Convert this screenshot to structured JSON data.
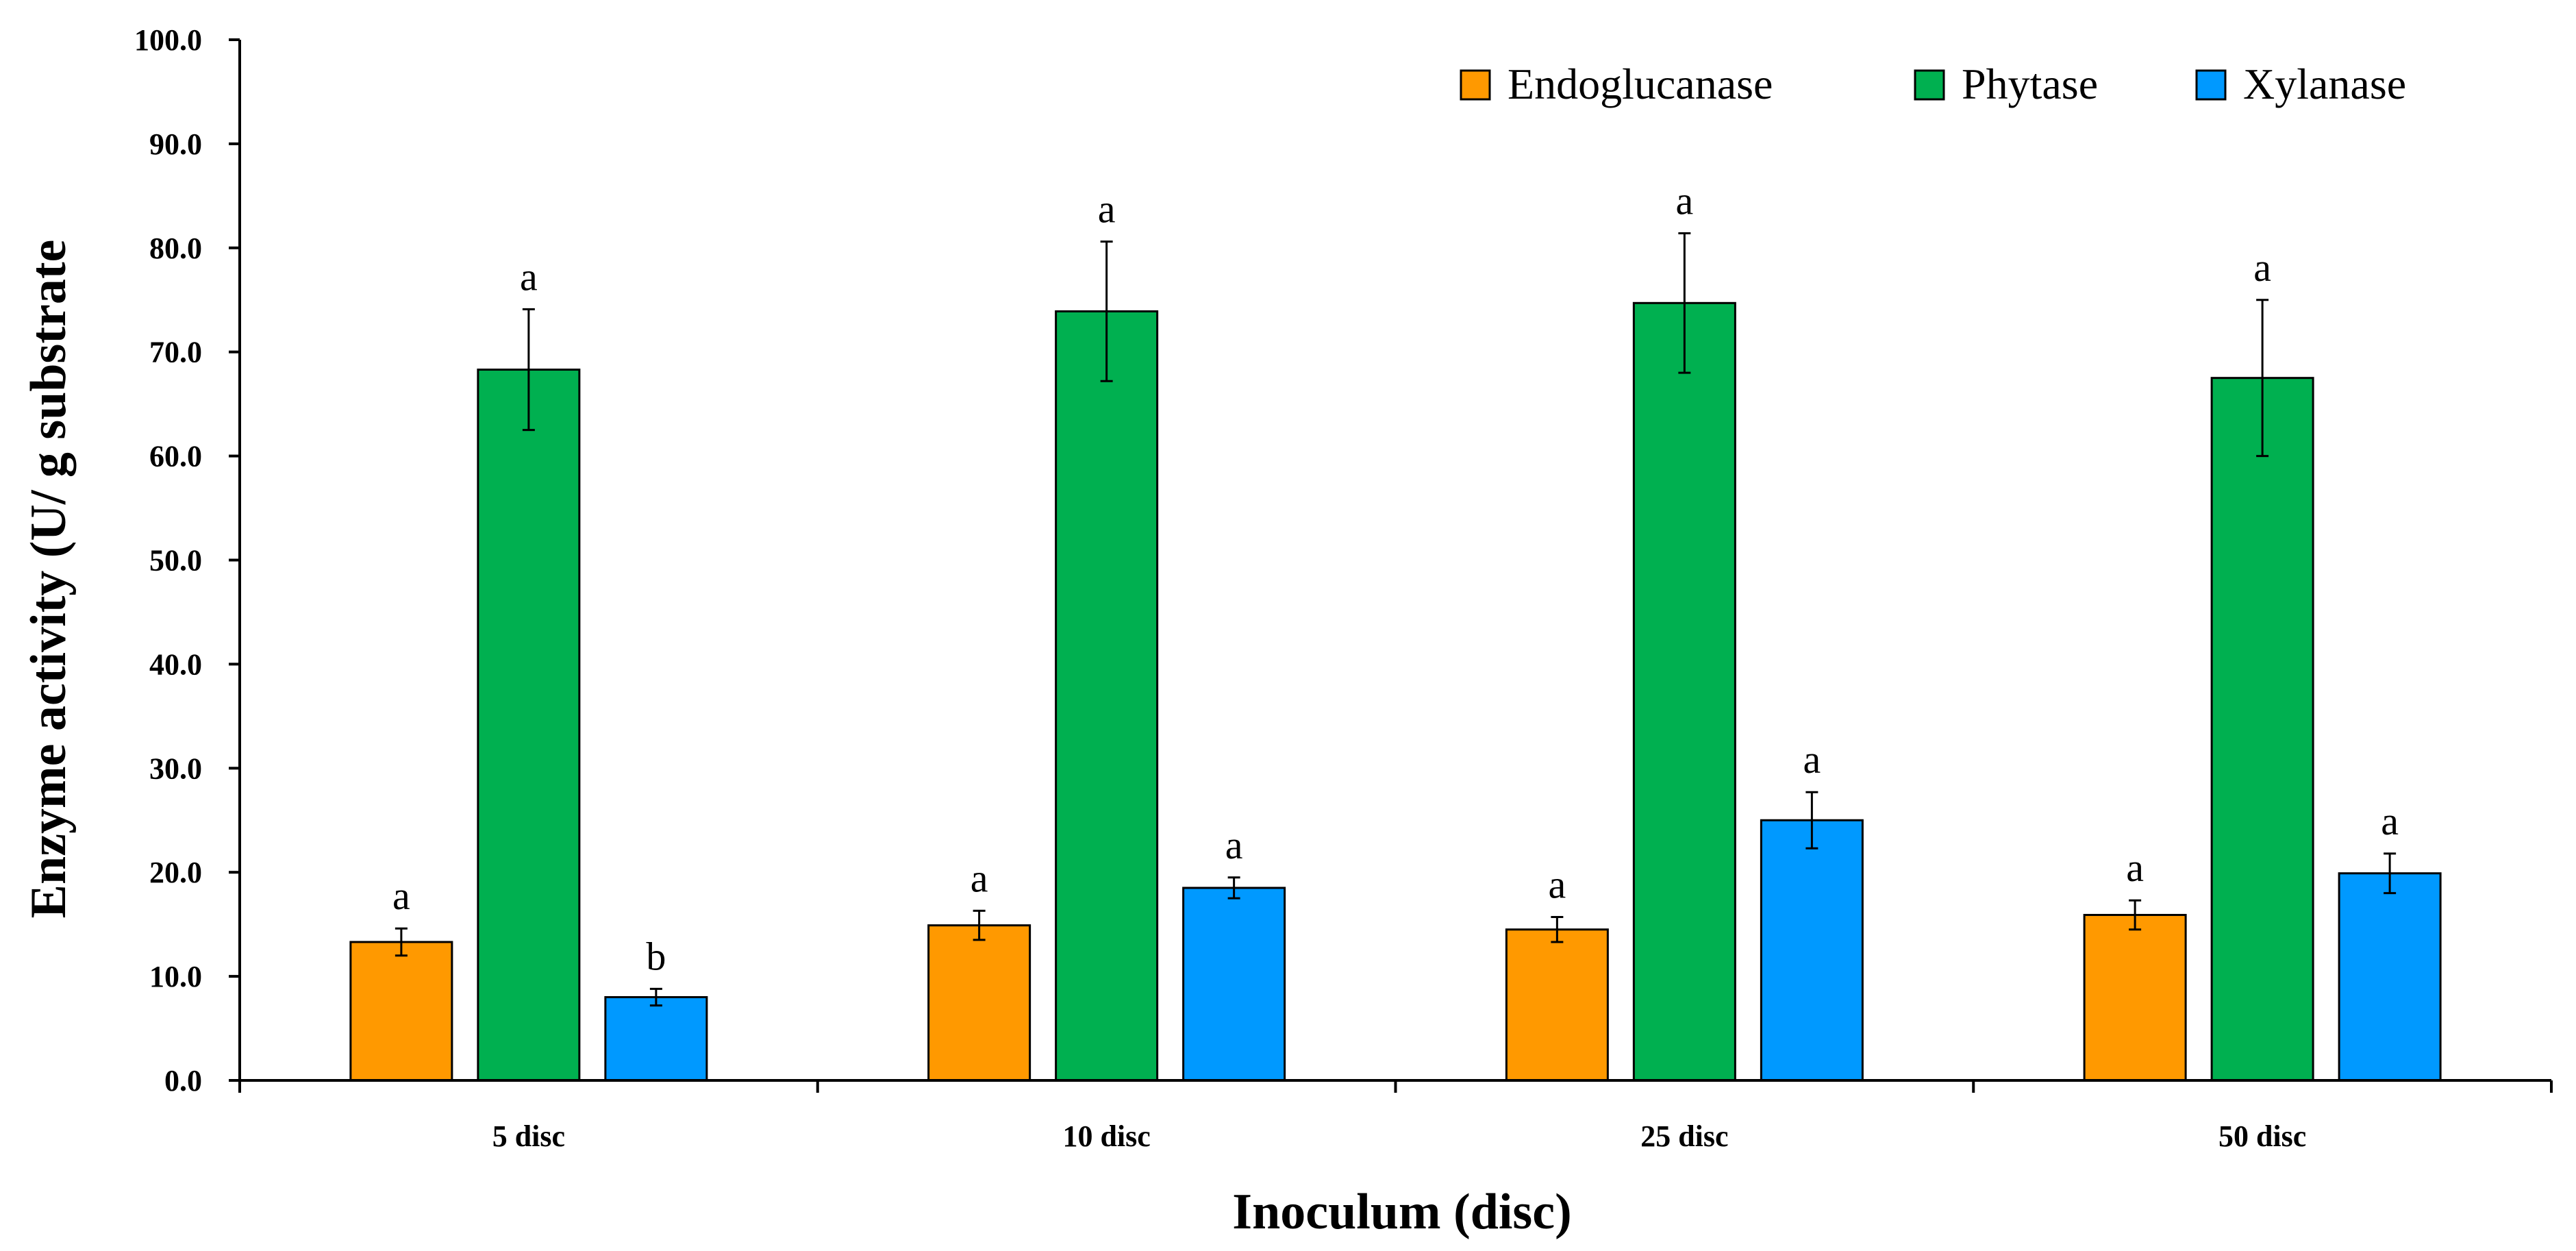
{
  "chart_data": {
    "type": "bar",
    "title": "",
    "xlabel": "Inoculum (disc)",
    "ylabel": "Enzyme activity (U/ g substrate",
    "ylim": [
      0,
      100
    ],
    "yticks": [
      "0.0",
      "10.0",
      "20.0",
      "30.0",
      "40.0",
      "50.0",
      "60.0",
      "70.0",
      "80.0",
      "90.0",
      "100.0"
    ],
    "categories": [
      "5 disc",
      "10 disc",
      "25 disc",
      "50 disc"
    ],
    "legend_position": "top-right",
    "grid": false,
    "series": [
      {
        "name": "Endoglucanase",
        "color": "#FF9900",
        "values": [
          13.3,
          14.9,
          14.5,
          15.9
        ],
        "errors": [
          1.3,
          1.4,
          1.2,
          1.4
        ],
        "sig_labels": [
          "a",
          "a",
          "a",
          "a"
        ]
      },
      {
        "name": "Phytase",
        "color": "#00B050",
        "values": [
          68.3,
          73.9,
          74.7,
          67.5
        ],
        "errors": [
          5.8,
          6.7,
          6.7,
          7.5
        ],
        "sig_labels": [
          "a",
          "a",
          "a",
          "a"
        ]
      },
      {
        "name": "Xylanase",
        "color": "#0099FF",
        "values": [
          8.0,
          18.5,
          25.0,
          19.9
        ],
        "errors": [
          0.8,
          1.0,
          2.7,
          1.9
        ],
        "sig_labels": [
          "b",
          "a",
          "a",
          "a"
        ]
      }
    ]
  }
}
